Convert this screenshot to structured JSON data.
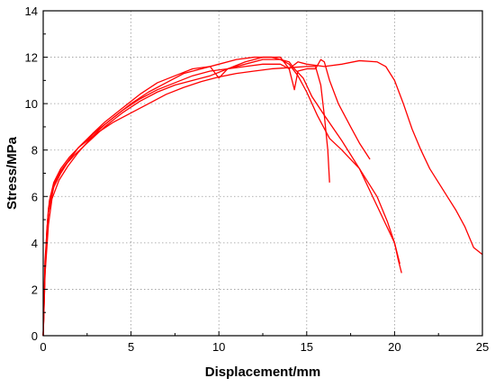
{
  "chart_data": {
    "type": "line",
    "title": "",
    "xlabel": "Displacement/mm",
    "ylabel": "Stress/MPa",
    "xlim": [
      0,
      25
    ],
    "ylim": [
      0,
      14
    ],
    "xticks": [
      0,
      5,
      10,
      15,
      20,
      25
    ],
    "yticks": [
      0,
      2,
      4,
      6,
      8,
      10,
      12,
      14
    ],
    "grid": "dotted",
    "legend": "none",
    "line_color": "#ff0000",
    "series": [
      {
        "values": [
          [
            0,
            0
          ],
          [
            0.1,
            2.5
          ],
          [
            0.2,
            4.5
          ],
          [
            0.35,
            5.8
          ],
          [
            0.6,
            6.6
          ],
          [
            1.0,
            7.2
          ],
          [
            1.5,
            7.7
          ],
          [
            2.0,
            8.1
          ],
          [
            3.0,
            8.7
          ],
          [
            4.0,
            9.2
          ],
          [
            5.0,
            9.6
          ],
          [
            6.0,
            10.0
          ],
          [
            7.0,
            10.4
          ],
          [
            8.0,
            10.7
          ],
          [
            9.0,
            10.95
          ],
          [
            10.0,
            11.15
          ],
          [
            11.0,
            11.3
          ],
          [
            12.0,
            11.4
          ],
          [
            13.0,
            11.5
          ],
          [
            14.0,
            11.55
          ],
          [
            15.0,
            11.6
          ],
          [
            15.5,
            11.6
          ],
          [
            15.8,
            10.8
          ],
          [
            16.0,
            9.5
          ],
          [
            16.2,
            8.0
          ],
          [
            16.3,
            6.6
          ]
        ]
      },
      {
        "values": [
          [
            0,
            0
          ],
          [
            0.1,
            2.8
          ],
          [
            0.25,
            5.0
          ],
          [
            0.4,
            6.0
          ],
          [
            0.8,
            6.8
          ],
          [
            1.2,
            7.3
          ],
          [
            1.8,
            7.8
          ],
          [
            2.5,
            8.3
          ],
          [
            3.5,
            9.0
          ],
          [
            4.5,
            9.6
          ],
          [
            5.5,
            10.1
          ],
          [
            6.5,
            10.5
          ],
          [
            7.5,
            10.8
          ],
          [
            8.5,
            11.0
          ],
          [
            9.5,
            11.2
          ],
          [
            10.5,
            11.5
          ],
          [
            11.5,
            11.7
          ],
          [
            12.5,
            11.9
          ],
          [
            13.5,
            11.9
          ],
          [
            14.0,
            11.8
          ],
          [
            14.3,
            11.5
          ],
          [
            14.8,
            11.1
          ],
          [
            15.3,
            10.3
          ],
          [
            16.0,
            9.5
          ],
          [
            17.0,
            8.4
          ],
          [
            18.0,
            7.2
          ],
          [
            19.0,
            6.0
          ],
          [
            19.6,
            4.9
          ],
          [
            20.0,
            4.0
          ],
          [
            20.2,
            3.3
          ],
          [
            20.4,
            2.7
          ]
        ]
      },
      {
        "values": [
          [
            0,
            0
          ],
          [
            0.1,
            3.0
          ],
          [
            0.3,
            5.3
          ],
          [
            0.6,
            6.4
          ],
          [
            1.0,
            7.0
          ],
          [
            1.5,
            7.6
          ],
          [
            2.0,
            8.1
          ],
          [
            3.0,
            8.8
          ],
          [
            4.0,
            9.4
          ],
          [
            5.0,
            10.0
          ],
          [
            6.0,
            10.5
          ],
          [
            7.0,
            10.9
          ],
          [
            8.0,
            11.3
          ],
          [
            9.0,
            11.5
          ],
          [
            10.0,
            11.7
          ],
          [
            11.0,
            11.9
          ],
          [
            12.0,
            12.0
          ],
          [
            13.0,
            12.0
          ],
          [
            13.5,
            11.9
          ],
          [
            14.0,
            11.7
          ],
          [
            14.5,
            11.2
          ],
          [
            15.0,
            10.5
          ],
          [
            15.6,
            9.5
          ],
          [
            16.3,
            8.5
          ],
          [
            17.0,
            8.0
          ],
          [
            18.0,
            7.2
          ],
          [
            18.5,
            6.4
          ],
          [
            19.0,
            5.6
          ],
          [
            19.5,
            4.8
          ],
          [
            20.0,
            4.0
          ],
          [
            20.3,
            3.1
          ]
        ]
      },
      {
        "values": [
          [
            0,
            0
          ],
          [
            0.1,
            3.2
          ],
          [
            0.3,
            5.5
          ],
          [
            0.6,
            6.5
          ],
          [
            1.0,
            7.1
          ],
          [
            1.5,
            7.6
          ],
          [
            2.0,
            8.1
          ],
          [
            2.8,
            8.7
          ],
          [
            3.5,
            9.2
          ],
          [
            4.5,
            9.8
          ],
          [
            5.5,
            10.4
          ],
          [
            6.5,
            10.9
          ],
          [
            7.5,
            11.2
          ],
          [
            8.5,
            11.5
          ],
          [
            9.5,
            11.6
          ],
          [
            10.0,
            11.1
          ],
          [
            10.5,
            11.5
          ],
          [
            11.5,
            11.8
          ],
          [
            12.5,
            12.0
          ],
          [
            13.5,
            12.0
          ],
          [
            14.0,
            11.5
          ],
          [
            14.5,
            11.8
          ],
          [
            15.0,
            11.7
          ],
          [
            16.0,
            11.6
          ],
          [
            17.0,
            11.7
          ],
          [
            18.0,
            11.85
          ],
          [
            19.0,
            11.8
          ],
          [
            19.5,
            11.6
          ],
          [
            20.0,
            11.0
          ],
          [
            20.5,
            10.0
          ],
          [
            21.0,
            8.9
          ],
          [
            21.5,
            8.0
          ],
          [
            22.0,
            7.2
          ],
          [
            22.5,
            6.6
          ],
          [
            23.0,
            6.0
          ],
          [
            23.5,
            5.4
          ],
          [
            24.0,
            4.7
          ],
          [
            24.5,
            3.8
          ],
          [
            25.0,
            3.5
          ]
        ]
      },
      {
        "values": [
          [
            0,
            0
          ],
          [
            0.1,
            2.6
          ],
          [
            0.3,
            4.8
          ],
          [
            0.5,
            5.9
          ],
          [
            0.9,
            6.7
          ],
          [
            1.4,
            7.3
          ],
          [
            2.0,
            7.9
          ],
          [
            2.7,
            8.5
          ],
          [
            3.5,
            9.1
          ],
          [
            4.5,
            9.7
          ],
          [
            5.5,
            10.2
          ],
          [
            6.5,
            10.6
          ],
          [
            7.5,
            10.9
          ],
          [
            8.5,
            11.2
          ],
          [
            9.5,
            11.4
          ],
          [
            10.5,
            11.5
          ],
          [
            11.5,
            11.6
          ],
          [
            12.5,
            11.7
          ],
          [
            13.5,
            11.7
          ],
          [
            14.0,
            11.5
          ],
          [
            14.3,
            10.6
          ],
          [
            14.5,
            11.4
          ],
          [
            15.0,
            11.5
          ],
          [
            15.5,
            11.5
          ],
          [
            15.8,
            11.9
          ],
          [
            16.0,
            11.8
          ],
          [
            16.3,
            11.0
          ],
          [
            16.8,
            10.0
          ],
          [
            17.5,
            9.0
          ],
          [
            18.0,
            8.3
          ],
          [
            18.6,
            7.6
          ]
        ]
      }
    ]
  }
}
